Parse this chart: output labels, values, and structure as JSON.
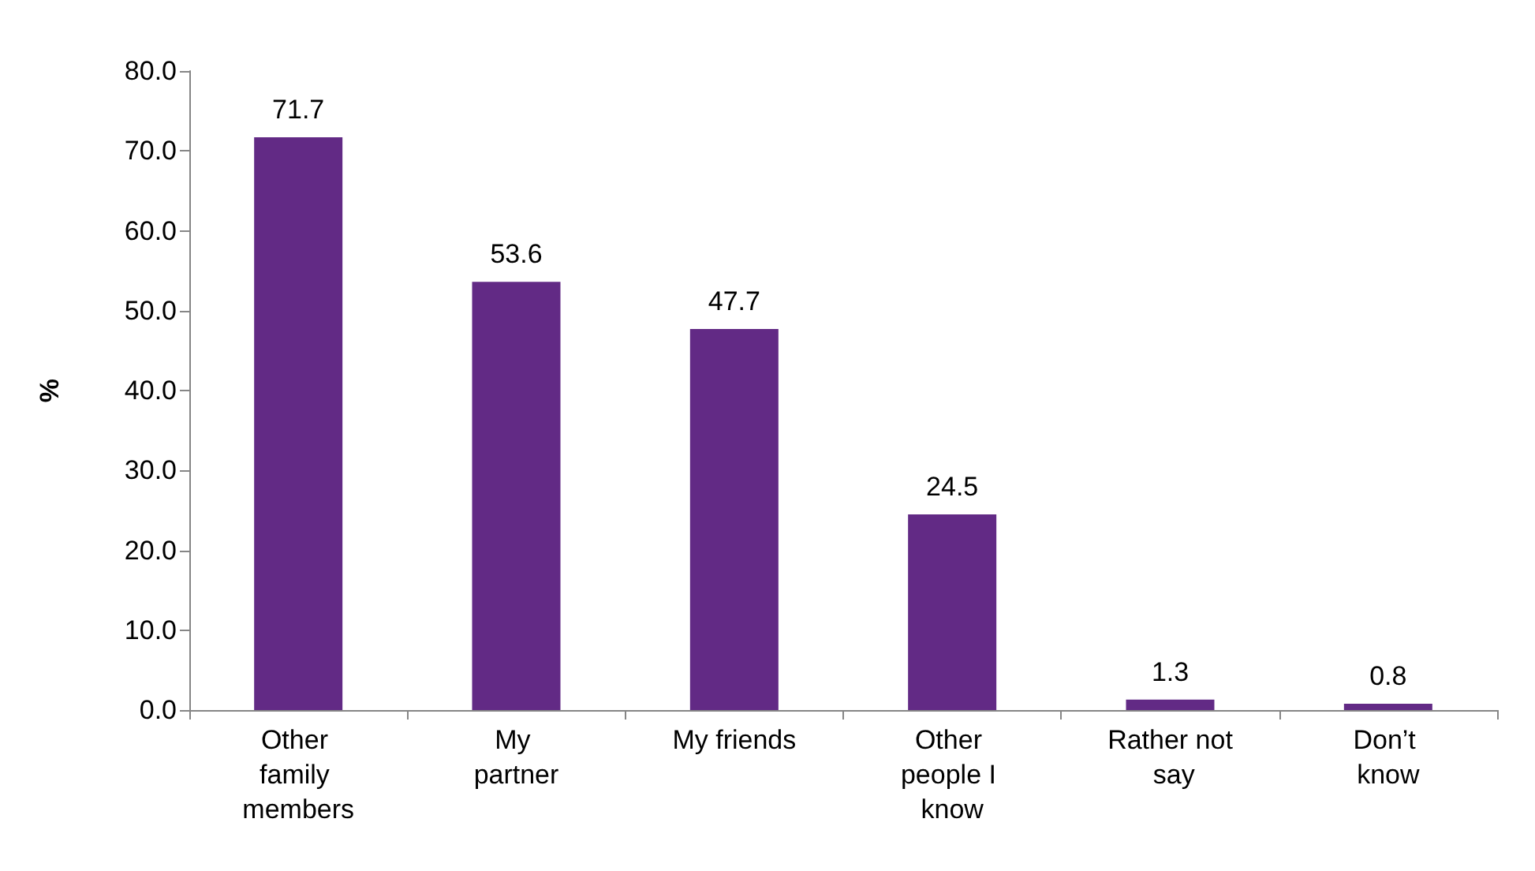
{
  "chart_data": {
    "type": "bar",
    "ylabel": "%",
    "categories": [
      "Other family members",
      "My partner",
      "My friends",
      "Other people I know",
      "Rather not say",
      "Don’t know"
    ],
    "values": [
      71.7,
      53.6,
      47.7,
      24.5,
      1.3,
      0.8
    ],
    "color": "#622a85",
    "ylim": [
      0,
      80
    ],
    "yticks": [
      {
        "value": 0,
        "label": "0.0"
      },
      {
        "value": 10,
        "label": "10.0"
      },
      {
        "value": 20,
        "label": "20.0"
      },
      {
        "value": 30,
        "label": "30.0"
      },
      {
        "value": 40,
        "label": "40.0"
      },
      {
        "value": 50,
        "label": "50.0"
      },
      {
        "value": 60,
        "label": "60.0"
      },
      {
        "value": 70,
        "label": "70.0"
      },
      {
        "value": 80,
        "label": "80.0"
      }
    ],
    "data_labels": true,
    "grid": false
  }
}
